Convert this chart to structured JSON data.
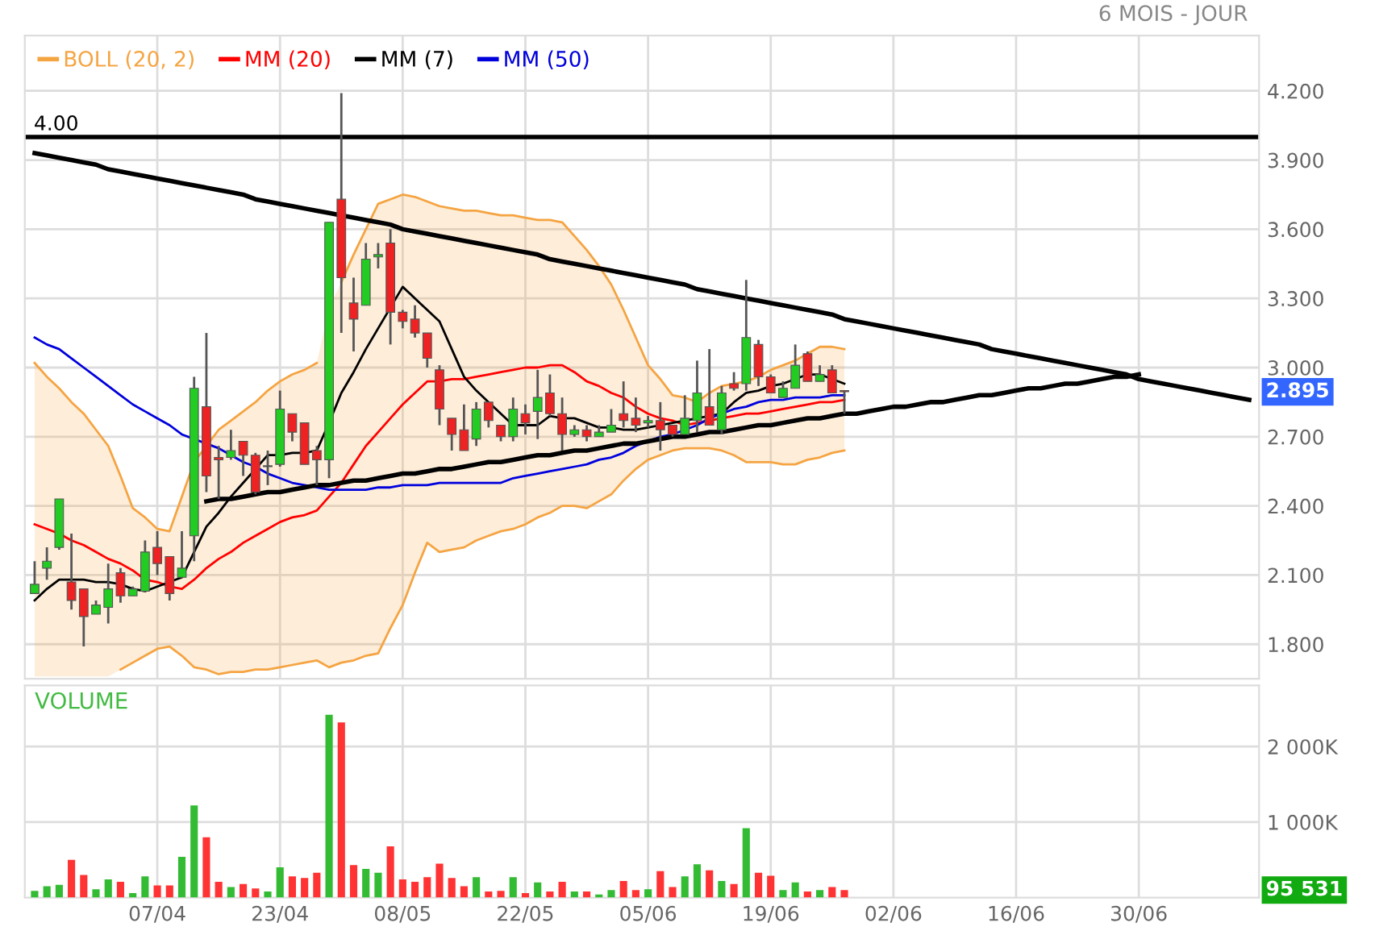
{
  "chart_data": [
    {
      "type": "candlestick",
      "subtitle": "6 MOIS - JOUR",
      "ohlc": [
        [
          2.02,
          2.16,
          2.02,
          2.06
        ],
        [
          2.13,
          2.22,
          2.08,
          2.16
        ],
        [
          2.22,
          2.43,
          2.21,
          2.43
        ],
        [
          2.07,
          2.28,
          1.95,
          1.99
        ],
        [
          2.04,
          2.04,
          1.79,
          1.92
        ],
        [
          1.93,
          1.99,
          1.93,
          1.97
        ],
        [
          1.96,
          2.15,
          1.89,
          2.04
        ],
        [
          2.11,
          2.13,
          1.98,
          2.01
        ],
        [
          2.01,
          2.05,
          2.01,
          2.04
        ],
        [
          2.03,
          2.25,
          2.03,
          2.2
        ],
        [
          2.22,
          2.29,
          2.1,
          2.15
        ],
        [
          2.18,
          2.18,
          1.99,
          2.02
        ],
        [
          2.09,
          2.29,
          2.09,
          2.13
        ],
        [
          2.27,
          2.96,
          2.16,
          2.91
        ],
        [
          2.83,
          3.15,
          2.46,
          2.53
        ],
        [
          2.61,
          2.66,
          2.43,
          2.6
        ],
        [
          2.61,
          2.73,
          2.6,
          2.64
        ],
        [
          2.68,
          2.68,
          2.53,
          2.62
        ],
        [
          2.62,
          2.63,
          2.45,
          2.46
        ],
        [
          2.57,
          2.64,
          2.49,
          2.57
        ],
        [
          2.58,
          2.9,
          2.57,
          2.82
        ],
        [
          2.8,
          2.8,
          2.68,
          2.72
        ],
        [
          2.76,
          2.76,
          2.58,
          2.58
        ],
        [
          2.64,
          2.66,
          2.49,
          2.6
        ],
        [
          2.6,
          3.63,
          2.52,
          3.63
        ],
        [
          3.73,
          4.19,
          3.15,
          3.39
        ],
        [
          3.28,
          3.39,
          3.07,
          3.21
        ],
        [
          3.27,
          3.54,
          3.27,
          3.47
        ],
        [
          3.48,
          3.54,
          3.43,
          3.49
        ],
        [
          3.54,
          3.6,
          3.1,
          3.24
        ],
        [
          3.24,
          3.25,
          3.17,
          3.2
        ],
        [
          3.21,
          3.27,
          3.13,
          3.15
        ],
        [
          3.15,
          3.15,
          3.0,
          3.04
        ],
        [
          2.99,
          3.01,
          2.75,
          2.82
        ],
        [
          2.78,
          2.78,
          2.64,
          2.71
        ],
        [
          2.73,
          2.84,
          2.64,
          2.64
        ],
        [
          2.69,
          2.85,
          2.66,
          2.82
        ],
        [
          2.85,
          2.85,
          2.74,
          2.77
        ],
        [
          2.75,
          2.75,
          2.68,
          2.7
        ],
        [
          2.7,
          2.87,
          2.68,
          2.82
        ],
        [
          2.8,
          2.84,
          2.71,
          2.76
        ],
        [
          2.81,
          2.99,
          2.69,
          2.87
        ],
        [
          2.89,
          2.97,
          2.79,
          2.8
        ],
        [
          2.8,
          2.87,
          2.64,
          2.71
        ],
        [
          2.71,
          2.75,
          2.7,
          2.73
        ],
        [
          2.73,
          2.75,
          2.68,
          2.7
        ],
        [
          2.7,
          2.75,
          2.7,
          2.72
        ],
        [
          2.72,
          2.82,
          2.72,
          2.75
        ],
        [
          2.8,
          2.94,
          2.74,
          2.77
        ],
        [
          2.78,
          2.87,
          2.72,
          2.75
        ],
        [
          2.76,
          2.79,
          2.74,
          2.77
        ],
        [
          2.77,
          2.85,
          2.64,
          2.73
        ],
        [
          2.75,
          2.75,
          2.7,
          2.71
        ],
        [
          2.71,
          2.88,
          2.71,
          2.78
        ],
        [
          2.77,
          3.03,
          2.72,
          2.89
        ],
        [
          2.83,
          3.08,
          2.75,
          2.75
        ],
        [
          2.73,
          2.92,
          2.71,
          2.89
        ],
        [
          2.93,
          2.98,
          2.9,
          2.91
        ],
        [
          2.93,
          3.38,
          2.9,
          3.13
        ],
        [
          3.1,
          3.12,
          2.92,
          2.96
        ],
        [
          2.96,
          2.97,
          2.89,
          2.89
        ],
        [
          2.87,
          2.94,
          2.87,
          2.91
        ],
        [
          2.91,
          3.1,
          2.91,
          3.01
        ],
        [
          3.06,
          3.07,
          2.94,
          2.94
        ],
        [
          2.94,
          3.01,
          2.94,
          2.97
        ],
        [
          2.99,
          3.01,
          2.89,
          2.89
        ],
        [
          2.9,
          2.9,
          2.8,
          2.895
        ],
        null,
        null,
        null,
        null,
        null,
        null,
        null,
        null,
        null,
        null,
        null,
        null,
        null,
        null,
        null,
        null,
        null,
        null,
        null,
        null,
        null,
        null,
        null,
        null,
        null,
        null,
        null,
        null,
        null,
        null,
        null,
        null,
        null
      ],
      "colors": [
        "#22cc22",
        "#22cc22",
        "#22cc22",
        "#ee2222",
        "#ee2222",
        "#22cc22",
        "#22cc22",
        "#ee2222",
        "#22cc22",
        "#22cc22",
        "#ee2222",
        "#ee2222",
        "#22cc22",
        "#22cc22",
        "#ee2222",
        "#ee2222",
        "#22cc22",
        "#ee2222",
        "#ee2222",
        "#22cc22",
        "#22cc22",
        "#ee2222",
        "#ee2222",
        "#ee2222",
        "#22cc22",
        "#ee2222",
        "#ee2222",
        "#22cc22",
        "#22cc22",
        "#ee2222",
        "#ee2222",
        "#ee2222",
        "#ee2222",
        "#ee2222",
        "#ee2222",
        "#ee2222",
        "#22cc22",
        "#ee2222",
        "#ee2222",
        "#22cc22",
        "#ee2222",
        "#22cc22",
        "#ee2222",
        "#ee2222",
        "#22cc22",
        "#ee2222",
        "#22cc22",
        "#22cc22",
        "#ee2222",
        "#ee2222",
        "#22cc22",
        "#ee2222",
        "#ee2222",
        "#22cc22",
        "#22cc22",
        "#ee2222",
        "#22cc22",
        "#ee2222",
        "#22cc22",
        "#ee2222",
        "#ee2222",
        "#22cc22",
        "#22cc22",
        "#ee2222",
        "#22cc22",
        "#ee2222",
        "#ee2222",
        null,
        null,
        null,
        null,
        null,
        null,
        null,
        null,
        null,
        null,
        null,
        null,
        null,
        null,
        null,
        null,
        null,
        null,
        null,
        null,
        null,
        null,
        null,
        null,
        null,
        null,
        null,
        null,
        null,
        null,
        null,
        null,
        null
      ],
      "series": [
        {
          "name": "BOLL (20, 2)",
          "type": "line",
          "color": "#f5a442",
          "upper": [
            3.02,
            2.96,
            2.91,
            2.85,
            2.8,
            2.73,
            2.66,
            2.53,
            2.39,
            2.35,
            2.3,
            2.29,
            2.44,
            2.59,
            2.66,
            2.73,
            2.77,
            2.81,
            2.85,
            2.9,
            2.94,
            2.97,
            2.99,
            3.02,
            3.26,
            3.37,
            3.49,
            3.6,
            3.71,
            3.73,
            3.75,
            3.74,
            3.72,
            3.7,
            3.69,
            3.68,
            3.68,
            3.67,
            3.66,
            3.66,
            3.65,
            3.64,
            3.64,
            3.63,
            3.57,
            3.51,
            3.44,
            3.36,
            3.25,
            3.13,
            3.01,
            2.95,
            2.88,
            2.87,
            2.85,
            2.89,
            2.92,
            2.93,
            2.94,
            2.96,
            2.99,
            3.01,
            3.03,
            3.06,
            3.09,
            3.09,
            3.08,
            null,
            null,
            null,
            null,
            null,
            null,
            null,
            null,
            null,
            null,
            null,
            null,
            null,
            null,
            null,
            null,
            null,
            null,
            null,
            null,
            null,
            null,
            null,
            null,
            null,
            null,
            null,
            null,
            null,
            null,
            null,
            null,
            null
          ],
          "values": [
            3.02,
            2.96,
            2.91,
            2.85,
            2.8,
            2.73,
            2.66,
            2.53,
            2.39,
            2.35,
            2.3,
            2.29,
            2.44,
            2.59,
            2.66,
            2.73,
            2.77,
            2.81,
            2.85,
            2.9,
            2.94,
            2.97,
            2.99,
            3.02,
            null,
            3.37,
            3.49,
            3.6,
            3.71,
            3.73,
            3.75,
            3.74,
            3.72,
            3.7,
            3.69,
            3.68,
            3.68,
            3.67,
            3.66,
            3.66,
            3.65,
            3.64,
            3.64,
            3.63,
            3.57,
            3.51,
            3.44,
            3.36,
            3.25,
            3.13,
            3.01,
            2.95,
            2.88,
            2.87,
            2.85,
            2.89,
            2.92,
            2.93,
            2.94,
            2.96,
            2.99,
            3.01,
            3.03,
            3.06,
            3.09,
            3.09,
            3.08,
            null,
            null,
            null,
            null,
            null,
            null,
            null,
            null,
            null,
            null,
            null,
            null,
            null,
            null,
            null,
            null,
            null,
            null,
            null,
            null,
            null,
            null,
            null,
            null,
            null,
            null,
            null,
            null,
            null,
            null,
            null,
            null,
            null
          ],
          "lower": [
            1.66,
            1.66,
            1.66,
            1.66,
            1.66,
            1.66,
            1.66,
            1.69,
            1.72,
            1.75,
            1.78,
            1.79,
            1.75,
            1.7,
            1.69,
            1.67,
            1.68,
            1.68,
            1.69,
            1.69,
            1.7,
            1.71,
            1.72,
            1.73,
            1.7,
            1.72,
            1.73,
            1.75,
            1.76,
            1.87,
            1.97,
            2.11,
            2.24,
            2.2,
            2.21,
            2.22,
            2.25,
            2.27,
            2.29,
            2.3,
            2.32,
            2.35,
            2.37,
            2.4,
            2.4,
            2.39,
            2.42,
            2.45,
            2.51,
            2.56,
            2.6,
            2.62,
            2.64,
            2.65,
            2.65,
            2.65,
            2.64,
            2.62,
            2.59,
            2.59,
            2.59,
            2.58,
            2.58,
            2.6,
            2.61,
            2.63,
            2.64,
            null,
            null,
            null,
            null,
            null,
            null,
            null,
            null,
            null,
            null,
            null,
            null,
            null,
            null,
            null,
            null,
            null,
            null,
            null,
            null,
            null,
            null,
            null,
            null,
            null,
            null,
            null,
            null,
            null,
            null,
            null,
            null,
            null
          ]
        },
        {
          "type": "line",
          "color": "#f5a442",
          "values": [
            null,
            null,
            null,
            null,
            null,
            null,
            null,
            1.69,
            1.72,
            1.75,
            1.78,
            1.79,
            1.75,
            1.7,
            1.69,
            1.67,
            1.68,
            1.68,
            1.69,
            1.69,
            1.7,
            1.71,
            1.72,
            1.73,
            1.7,
            1.72,
            1.73,
            1.75,
            1.76,
            1.87,
            1.97,
            2.11,
            2.24,
            2.2,
            2.21,
            2.22,
            2.25,
            2.27,
            2.29,
            2.3,
            2.32,
            2.35,
            2.37,
            2.4,
            2.4,
            2.39,
            2.42,
            2.45,
            2.51,
            2.56,
            2.6,
            2.62,
            2.64,
            2.65,
            2.65,
            2.65,
            2.64,
            2.62,
            2.59,
            2.59,
            2.59,
            2.58,
            2.58,
            2.6,
            2.61,
            2.63,
            2.64,
            null,
            null,
            null,
            null,
            null,
            null,
            null,
            null,
            null,
            null,
            null,
            null,
            null,
            null,
            null,
            null,
            null,
            null,
            null,
            null,
            null,
            null,
            null,
            null,
            null,
            null,
            null,
            null,
            null,
            null,
            null,
            null,
            null
          ]
        },
        {
          "name": "MM (20)",
          "type": "line",
          "color": "#ff0000",
          "values": [
            2.32,
            2.3,
            2.28,
            2.25,
            2.23,
            2.2,
            2.17,
            2.15,
            2.12,
            2.08,
            2.07,
            2.05,
            2.04,
            2.08,
            2.13,
            2.17,
            2.2,
            2.24,
            2.27,
            2.3,
            2.33,
            2.35,
            2.36,
            2.38,
            2.44,
            2.5,
            2.58,
            2.66,
            2.72,
            2.78,
            2.84,
            2.89,
            2.94,
            2.94,
            2.95,
            2.95,
            2.96,
            2.97,
            2.98,
            2.99,
            3.0,
            3.0,
            3.01,
            3.01,
            2.98,
            2.94,
            2.92,
            2.89,
            2.87,
            2.83,
            2.8,
            2.78,
            2.77,
            2.75,
            2.76,
            2.77,
            2.78,
            2.79,
            2.8,
            2.8,
            2.81,
            2.82,
            2.83,
            2.84,
            2.85,
            2.85,
            2.86,
            null,
            null,
            null,
            null,
            null,
            null,
            null,
            null,
            null,
            null,
            null,
            null,
            null,
            null,
            null,
            null,
            null,
            null,
            null,
            null,
            null,
            null,
            null,
            null,
            null,
            null,
            null,
            null,
            null,
            null,
            null,
            null,
            null
          ]
        },
        {
          "name": "MM (7)",
          "type": "line",
          "color": "#000000",
          "values": [
            1.99,
            2.04,
            2.08,
            2.08,
            2.08,
            2.07,
            2.07,
            2.06,
            2.04,
            2.03,
            2.05,
            2.07,
            2.09,
            2.2,
            2.31,
            2.37,
            2.44,
            2.5,
            2.56,
            2.62,
            2.62,
            2.63,
            2.63,
            2.64,
            2.76,
            2.89,
            2.98,
            3.08,
            3.17,
            3.26,
            3.35,
            3.3,
            3.25,
            3.2,
            3.08,
            2.96,
            2.9,
            2.85,
            2.8,
            2.75,
            2.75,
            2.75,
            2.79,
            2.78,
            2.78,
            2.76,
            2.74,
            2.74,
            2.73,
            2.73,
            2.74,
            2.75,
            2.76,
            2.77,
            2.78,
            2.79,
            2.8,
            2.85,
            2.89,
            2.9,
            2.92,
            2.93,
            2.95,
            2.97,
            2.97,
            2.95,
            2.93,
            null,
            null,
            null,
            null,
            null,
            null,
            null,
            null,
            null,
            null,
            null,
            null,
            null,
            null,
            null,
            null,
            null,
            null,
            null,
            null,
            null,
            null,
            null,
            null,
            null,
            null,
            null,
            null,
            null,
            null,
            null,
            null,
            null
          ]
        },
        {
          "name": "MM (50)",
          "type": "line",
          "color": "#0000dd",
          "values": [
            3.13,
            3.1,
            3.08,
            3.04,
            3.0,
            2.96,
            2.92,
            2.88,
            2.84,
            2.81,
            2.78,
            2.75,
            2.71,
            2.69,
            2.67,
            2.65,
            2.62,
            2.59,
            2.57,
            2.54,
            2.52,
            2.5,
            2.49,
            2.48,
            2.47,
            2.47,
            2.47,
            2.47,
            2.48,
            2.48,
            2.49,
            2.49,
            2.49,
            2.5,
            2.5,
            2.5,
            2.5,
            2.5,
            2.5,
            2.52,
            2.53,
            2.54,
            2.55,
            2.56,
            2.57,
            2.58,
            2.6,
            2.61,
            2.63,
            2.66,
            2.68,
            2.7,
            2.71,
            2.73,
            2.75,
            2.78,
            2.8,
            2.82,
            2.83,
            2.85,
            2.86,
            2.86,
            2.87,
            2.87,
            2.87,
            2.88,
            2.88,
            null,
            null,
            null,
            null,
            null,
            null,
            null,
            null,
            null,
            null,
            null,
            null,
            null,
            null,
            null,
            null,
            null,
            null,
            null,
            null,
            null,
            null,
            null,
            null,
            null,
            null,
            null,
            null,
            null,
            null,
            null,
            null,
            null
          ]
        },
        {
          "type": "line",
          "color": "#000000",
          "values": [
            3.93,
            3.92,
            3.91,
            3.9,
            3.89,
            3.88,
            3.86,
            3.85,
            3.84,
            3.83,
            3.82,
            3.81,
            3.8,
            3.79,
            3.78,
            3.77,
            3.76,
            3.75,
            3.73,
            3.72,
            3.71,
            3.7,
            3.69,
            3.68,
            3.67,
            3.66,
            3.65,
            3.64,
            3.63,
            3.62,
            3.6,
            3.59,
            3.58,
            3.57,
            3.56,
            3.55,
            3.54,
            3.53,
            3.52,
            3.51,
            3.5,
            3.49,
            3.47,
            3.46,
            3.45,
            3.44,
            3.43,
            3.42,
            3.41,
            3.4,
            3.39,
            3.38,
            3.37,
            3.36,
            3.34,
            3.33,
            3.32,
            3.31,
            3.3,
            3.29,
            3.28,
            3.27,
            3.26,
            3.25,
            3.24,
            3.23,
            3.21,
            3.2,
            3.19,
            3.18,
            3.17,
            3.16,
            3.15,
            3.14,
            3.13,
            3.12,
            3.11,
            3.1,
            3.08,
            3.07,
            3.06,
            3.05,
            3.04,
            3.03,
            3.02,
            3.01,
            3.0,
            2.99,
            2.98,
            2.97,
            2.95,
            2.94,
            2.93,
            2.92,
            2.91,
            2.9,
            2.89,
            2.88,
            2.87,
            2.86
          ]
        },
        {
          "type": "line",
          "color": "#000000",
          "values": [
            null,
            null,
            null,
            null,
            null,
            null,
            null,
            null,
            null,
            null,
            null,
            null,
            null,
            null,
            2.42,
            2.43,
            2.43,
            2.44,
            2.45,
            2.46,
            2.46,
            2.47,
            2.48,
            2.49,
            2.49,
            2.5,
            2.51,
            2.51,
            2.52,
            2.53,
            2.54,
            2.54,
            2.55,
            2.56,
            2.56,
            2.57,
            2.58,
            2.59,
            2.59,
            2.6,
            2.61,
            2.62,
            2.62,
            2.63,
            2.64,
            2.64,
            2.65,
            2.66,
            2.67,
            2.67,
            2.68,
            2.69,
            2.7,
            2.7,
            2.71,
            2.72,
            2.72,
            2.73,
            2.74,
            2.75,
            2.75,
            2.76,
            2.77,
            2.78,
            2.78,
            2.79,
            2.8,
            2.8,
            2.81,
            2.82,
            2.83,
            2.83,
            2.84,
            2.85,
            2.85,
            2.86,
            2.87,
            2.88,
            2.88,
            2.89,
            2.9,
            2.91,
            2.91,
            2.92,
            2.93,
            2.93,
            2.94,
            2.95,
            2.96,
            2.96,
            2.97,
            null,
            null,
            null,
            null,
            null,
            null,
            null,
            null,
            null
          ]
        }
      ],
      "ref_lines": [
        {
          "axis": "y",
          "value": 4.0,
          "label": "4.00",
          "color": "#000000"
        }
      ],
      "annotations": [
        "2.895"
      ],
      "ylim": [
        1.65,
        4.44
      ],
      "yticks": [
        {
          "value": 1.8,
          "label": "1.800"
        },
        {
          "value": 2.1,
          "label": "2.100"
        },
        {
          "value": 2.4,
          "label": "2.400"
        },
        {
          "value": 2.7,
          "label": "2.700"
        },
        {
          "value": 3.0,
          "label": "3.000"
        },
        {
          "value": 3.3,
          "label": "3.300"
        },
        {
          "value": 3.6,
          "label": "3.600"
        },
        {
          "value": 3.9,
          "label": "3.900"
        },
        {
          "value": 4.2,
          "label": "4.200"
        }
      ],
      "tick_labels": "y",
      "grid": true,
      "legend": "top left"
    },
    {
      "type": "bar",
      "title": "VOLUME",
      "categories": [
        null,
        null,
        null,
        null,
        null,
        null,
        null,
        null,
        null,
        null,
        "07/04",
        null,
        null,
        null,
        null,
        null,
        null,
        null,
        null,
        null,
        "23/04",
        null,
        null,
        null,
        null,
        null,
        null,
        null,
        null,
        null,
        "08/05",
        null,
        null,
        null,
        null,
        null,
        null,
        null,
        null,
        null,
        "22/05",
        null,
        null,
        null,
        null,
        null,
        null,
        null,
        null,
        null,
        "05/06",
        null,
        null,
        null,
        null,
        null,
        null,
        null,
        null,
        null,
        "19/06",
        null,
        null,
        null,
        null,
        null,
        null,
        null,
        null,
        null,
        "02/06",
        null,
        null,
        null,
        null,
        null,
        null,
        null,
        null,
        null,
        "16/06",
        null,
        null,
        null,
        null,
        null,
        null,
        null,
        null,
        null,
        "30/06",
        null,
        null,
        null,
        null,
        null,
        null,
        null,
        null,
        null
      ],
      "values": [
        90,
        150,
        170,
        500,
        300,
        110,
        240,
        210,
        60,
        280,
        160,
        160,
        540,
        1220,
        800,
        210,
        140,
        180,
        120,
        80,
        400,
        280,
        260,
        330,
        2420,
        2320,
        430,
        380,
        330,
        680,
        240,
        210,
        270,
        450,
        260,
        150,
        270,
        80,
        90,
        270,
        60,
        200,
        80,
        210,
        80,
        80,
        40,
        100,
        220,
        100,
        110,
        350,
        140,
        280,
        440,
        360,
        220,
        180,
        920,
        330,
        290,
        100,
        200,
        80,
        100,
        140,
        100,
        null,
        null,
        null,
        null,
        null,
        null,
        null,
        null,
        null,
        null,
        null,
        null,
        null,
        null,
        null,
        null,
        null,
        null,
        null,
        null,
        null,
        null,
        null,
        null,
        null,
        null,
        null,
        null,
        null,
        null,
        null,
        null,
        null
      ],
      "colors": [
        "#33bb33",
        "#33bb33",
        "#33bb33",
        "#ff3333",
        "#ff3333",
        "#33bb33",
        "#33bb33",
        "#ff3333",
        "#33bb33",
        "#33bb33",
        "#ff3333",
        "#ff3333",
        "#33bb33",
        "#33bb33",
        "#ff3333",
        "#ff3333",
        "#33bb33",
        "#ff3333",
        "#ff3333",
        "#33bb33",
        "#33bb33",
        "#ff3333",
        "#ff3333",
        "#ff3333",
        "#33bb33",
        "#ff3333",
        "#ff3333",
        "#33bb33",
        "#33bb33",
        "#ff3333",
        "#ff3333",
        "#ff3333",
        "#ff3333",
        "#ff3333",
        "#ff3333",
        "#ff3333",
        "#33bb33",
        "#ff3333",
        "#ff3333",
        "#33bb33",
        "#ff3333",
        "#33bb33",
        "#ff3333",
        "#ff3333",
        "#33bb33",
        "#ff3333",
        "#33bb33",
        "#33bb33",
        "#ff3333",
        "#ff3333",
        "#33bb33",
        "#ff3333",
        "#ff3333",
        "#33bb33",
        "#33bb33",
        "#ff3333",
        "#33bb33",
        "#ff3333",
        "#33bb33",
        "#ff3333",
        "#ff3333",
        "#33bb33",
        "#33bb33",
        "#ff3333",
        "#33bb33",
        "#ff3333",
        "#ff3333",
        null,
        null,
        null,
        null,
        null,
        null,
        null,
        null,
        null,
        null,
        null,
        null,
        null,
        null,
        null,
        null,
        null,
        null,
        null,
        null,
        null,
        null,
        null,
        null,
        null,
        null,
        null,
        null,
        null,
        null,
        null,
        null,
        null
      ],
      "annotations": [
        "95 531"
      ],
      "ylim": [
        0,
        2810
      ],
      "yticks": [
        {
          "value": 1000,
          "label": "1 000K"
        },
        {
          "value": 2000,
          "label": "2 000K"
        }
      ],
      "grid": true
    }
  ]
}
